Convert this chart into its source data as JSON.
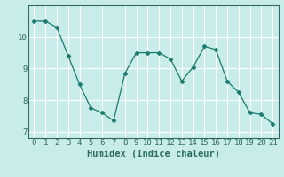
{
  "x": [
    0,
    1,
    2,
    3,
    4,
    5,
    6,
    7,
    8,
    9,
    10,
    11,
    12,
    13,
    14,
    15,
    16,
    17,
    18,
    19,
    20,
    21
  ],
  "y": [
    10.5,
    10.5,
    10.3,
    9.4,
    8.5,
    7.75,
    7.6,
    7.35,
    8.85,
    9.5,
    9.5,
    9.5,
    9.3,
    8.6,
    9.05,
    9.7,
    9.6,
    8.6,
    8.25,
    7.6,
    7.55,
    7.25
  ],
  "line_color": "#1a7a6e",
  "marker": "D",
  "marker_size": 2.5,
  "bg_color": "#c8ece9",
  "grid_color": "#ffffff",
  "axis_color": "#2e6b65",
  "xlabel": "Humidex (Indice chaleur)",
  "ylim": [
    6.8,
    11.0
  ],
  "xlim": [
    -0.5,
    21.5
  ],
  "yticks": [
    7,
    8,
    9,
    10
  ],
  "xticks": [
    0,
    1,
    2,
    3,
    4,
    5,
    6,
    7,
    8,
    9,
    10,
    11,
    12,
    13,
    14,
    15,
    16,
    17,
    18,
    19,
    20,
    21
  ],
  "tick_fontsize": 6.5,
  "label_fontsize": 7.5
}
